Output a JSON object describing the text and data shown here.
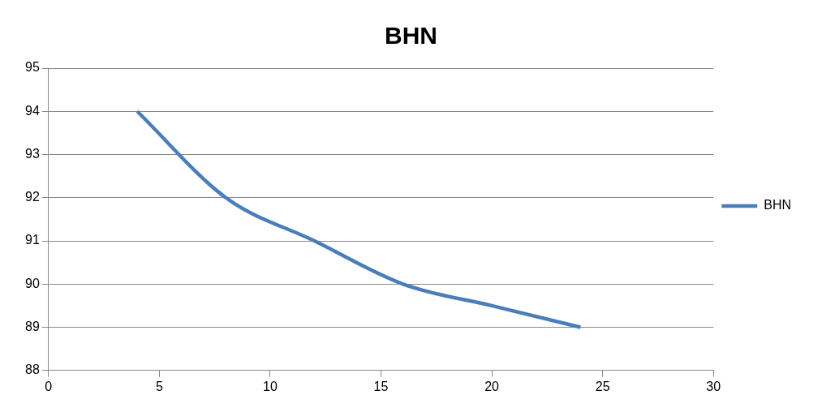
{
  "chart_data": {
    "type": "line",
    "title": "BHN",
    "x": [
      4,
      8,
      12,
      16,
      20,
      24
    ],
    "series": [
      {
        "name": "BHN",
        "color": "#4a7ebb",
        "values": [
          94,
          92,
          91,
          90,
          89.5,
          89
        ]
      }
    ],
    "xlim": [
      0,
      30
    ],
    "xticks": [
      0,
      5,
      10,
      15,
      20,
      25,
      30
    ],
    "ylim": [
      88,
      95
    ],
    "yticks": [
      88,
      89,
      90,
      91,
      92,
      93,
      94,
      95
    ],
    "grid": "y",
    "legend": "right",
    "marker": "none",
    "line_style": "solid"
  }
}
